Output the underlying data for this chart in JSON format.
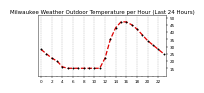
{
  "title": "Milwaukee Weather Outdoor Temperature per Hour (Last 24 Hours)",
  "x": [
    0,
    1,
    2,
    3,
    4,
    5,
    6,
    7,
    8,
    9,
    10,
    11,
    12,
    13,
    14,
    15,
    16,
    17,
    18,
    19,
    20,
    21,
    22,
    23
  ],
  "y": [
    28,
    25,
    22,
    20,
    16,
    15,
    15,
    15,
    15,
    15,
    15,
    15,
    22,
    35,
    43,
    47,
    47,
    45,
    42,
    38,
    34,
    31,
    28,
    25
  ],
  "line_color": "#dd0000",
  "marker_color": "#000000",
  "bg_color": "#ffffff",
  "grid_color": "#999999",
  "title_color": "#000000",
  "ylim": [
    10,
    52
  ],
  "ytick_values": [
    15,
    20,
    25,
    30,
    35,
    40,
    45,
    50
  ],
  "ytick_labels": [
    "15",
    "20",
    "25",
    "30",
    "35",
    "40",
    "45",
    "50"
  ],
  "title_fontsize": 4.0,
  "tick_fontsize": 3.0,
  "linewidth": 0.9,
  "markersize": 2.0
}
